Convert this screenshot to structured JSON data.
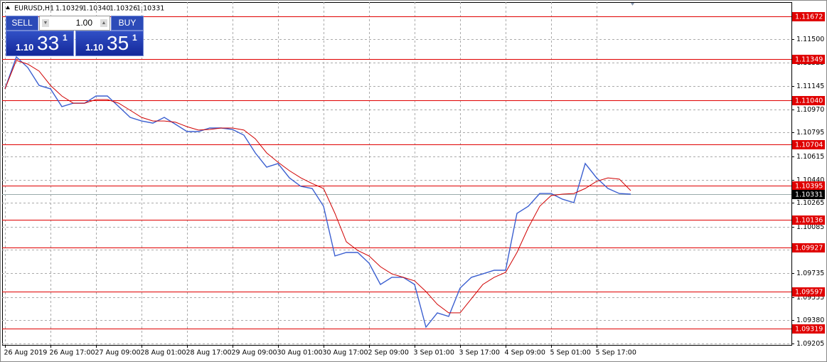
{
  "header": {
    "symbol": "EURUSD,H1",
    "quote": [
      "1.10329",
      "1.10340",
      "1.10326",
      "1.10331"
    ]
  },
  "trade_panel": {
    "sell": "SELL",
    "buy": "BUY",
    "lot": "1.00",
    "sell_price": {
      "prefix": "1.10",
      "big": "33",
      "sup": "1"
    },
    "buy_price": {
      "prefix": "1.10",
      "big": "35",
      "sup": "1"
    }
  },
  "chart_data": {
    "type": "line",
    "categories": [
      "26 Aug 2019",
      null,
      null,
      null,
      "26 Aug 17:00",
      null,
      null,
      null,
      "27 Aug 09:00",
      null,
      null,
      null,
      "28 Aug 01:00",
      null,
      null,
      null,
      "28 Aug 17:00",
      null,
      null,
      null,
      "29 Aug 09:00",
      null,
      null,
      null,
      "30 Aug 01:00",
      null,
      null,
      null,
      "30 Aug 17:00",
      null,
      null,
      null,
      "2 Sep 09:00",
      null,
      null,
      null,
      "3 Sep 01:00",
      null,
      null,
      null,
      "3 Sep 17:00",
      null,
      null,
      null,
      "4 Sep 09:00",
      null,
      null,
      null,
      "5 Sep 01:00",
      null,
      null,
      null,
      "5 Sep 17:00",
      null,
      null,
      null
    ],
    "series": [
      {
        "color": "#3b5fd0",
        "values": [
          1.11125,
          1.11366,
          1.11286,
          1.11151,
          1.11125,
          1.10991,
          1.11017,
          1.11017,
          1.11071,
          1.11071,
          1.10991,
          1.1091,
          1.10883,
          1.10867,
          1.1091,
          1.10857,
          1.10803,
          1.10803,
          1.1083,
          1.1083,
          1.10819,
          1.10776,
          1.10642,
          1.10535,
          1.10562,
          1.10454,
          1.1039,
          1.10374,
          1.1024,
          1.09865,
          1.09891,
          1.09891,
          1.09811,
          1.0965,
          1.09704,
          1.09704,
          1.0965,
          1.09328,
          1.09436,
          1.09409,
          1.09623,
          1.09704,
          1.0973,
          1.09757,
          1.09757,
          1.10186,
          1.1024,
          1.10336,
          1.10336,
          1.10293,
          1.10267,
          1.10562,
          1.10454,
          1.10374,
          1.10336,
          1.10331
        ]
      },
      {
        "color": "#d00000",
        "values": [
          1.11125,
          1.11339,
          1.11312,
          1.11259,
          1.11151,
          1.11071,
          1.11017,
          1.11017,
          1.11044,
          1.11044,
          1.11017,
          1.10964,
          1.1091,
          1.10883,
          1.10883,
          1.10873,
          1.1084,
          1.10814,
          1.10819,
          1.1083,
          1.1083,
          1.10814,
          1.10749,
          1.10642,
          1.10572,
          1.10508,
          1.10454,
          1.10411,
          1.10374,
          1.10186,
          1.09972,
          1.09907,
          1.09865,
          1.09784,
          1.0973,
          1.09704,
          1.09677,
          1.09597,
          1.095,
          1.09436,
          1.09436,
          1.09543,
          1.0965,
          1.09704,
          1.09741,
          1.09891,
          1.10079,
          1.1024,
          1.1032,
          1.10331,
          1.10336,
          1.10374,
          1.10428,
          1.10454,
          1.10444,
          1.10358
        ]
      }
    ],
    "ylim": [
      1.09194,
      1.11779
    ],
    "yticks": [
      {
        "value": 1.115,
        "label": "1.11500"
      },
      1.11325,
      1.11145,
      {
        "value": 1.1097,
        "label": "1.10970"
      },
      1.10795,
      1.10615,
      {
        "value": 1.1044,
        "label": "1.10440"
      },
      1.10265,
      1.10085,
      {
        "value": 1.0991,
        "label": "1.09910"
      },
      1.09735,
      1.09555,
      {
        "value": 1.0938,
        "label": "1.09380"
      },
      1.09205
    ],
    "levels": [
      {
        "value": 1.11672,
        "label": "1.11672"
      },
      {
        "value": 1.11349,
        "label": "1.11349"
      },
      {
        "value": 1.1104,
        "label": "1.11040"
      },
      {
        "value": 1.10704,
        "label": "1.10704"
      },
      {
        "value": 1.10395,
        "label": "1.10395"
      },
      {
        "value": 1.10136,
        "label": "1.10136"
      },
      {
        "value": 1.09927,
        "label": "1.09927"
      },
      {
        "value": 1.09597,
        "label": "1.09597"
      },
      {
        "value": 1.09319,
        "label": "1.09319"
      }
    ],
    "level_color": "#e00000",
    "current_price": 1.10331,
    "grid": true
  }
}
